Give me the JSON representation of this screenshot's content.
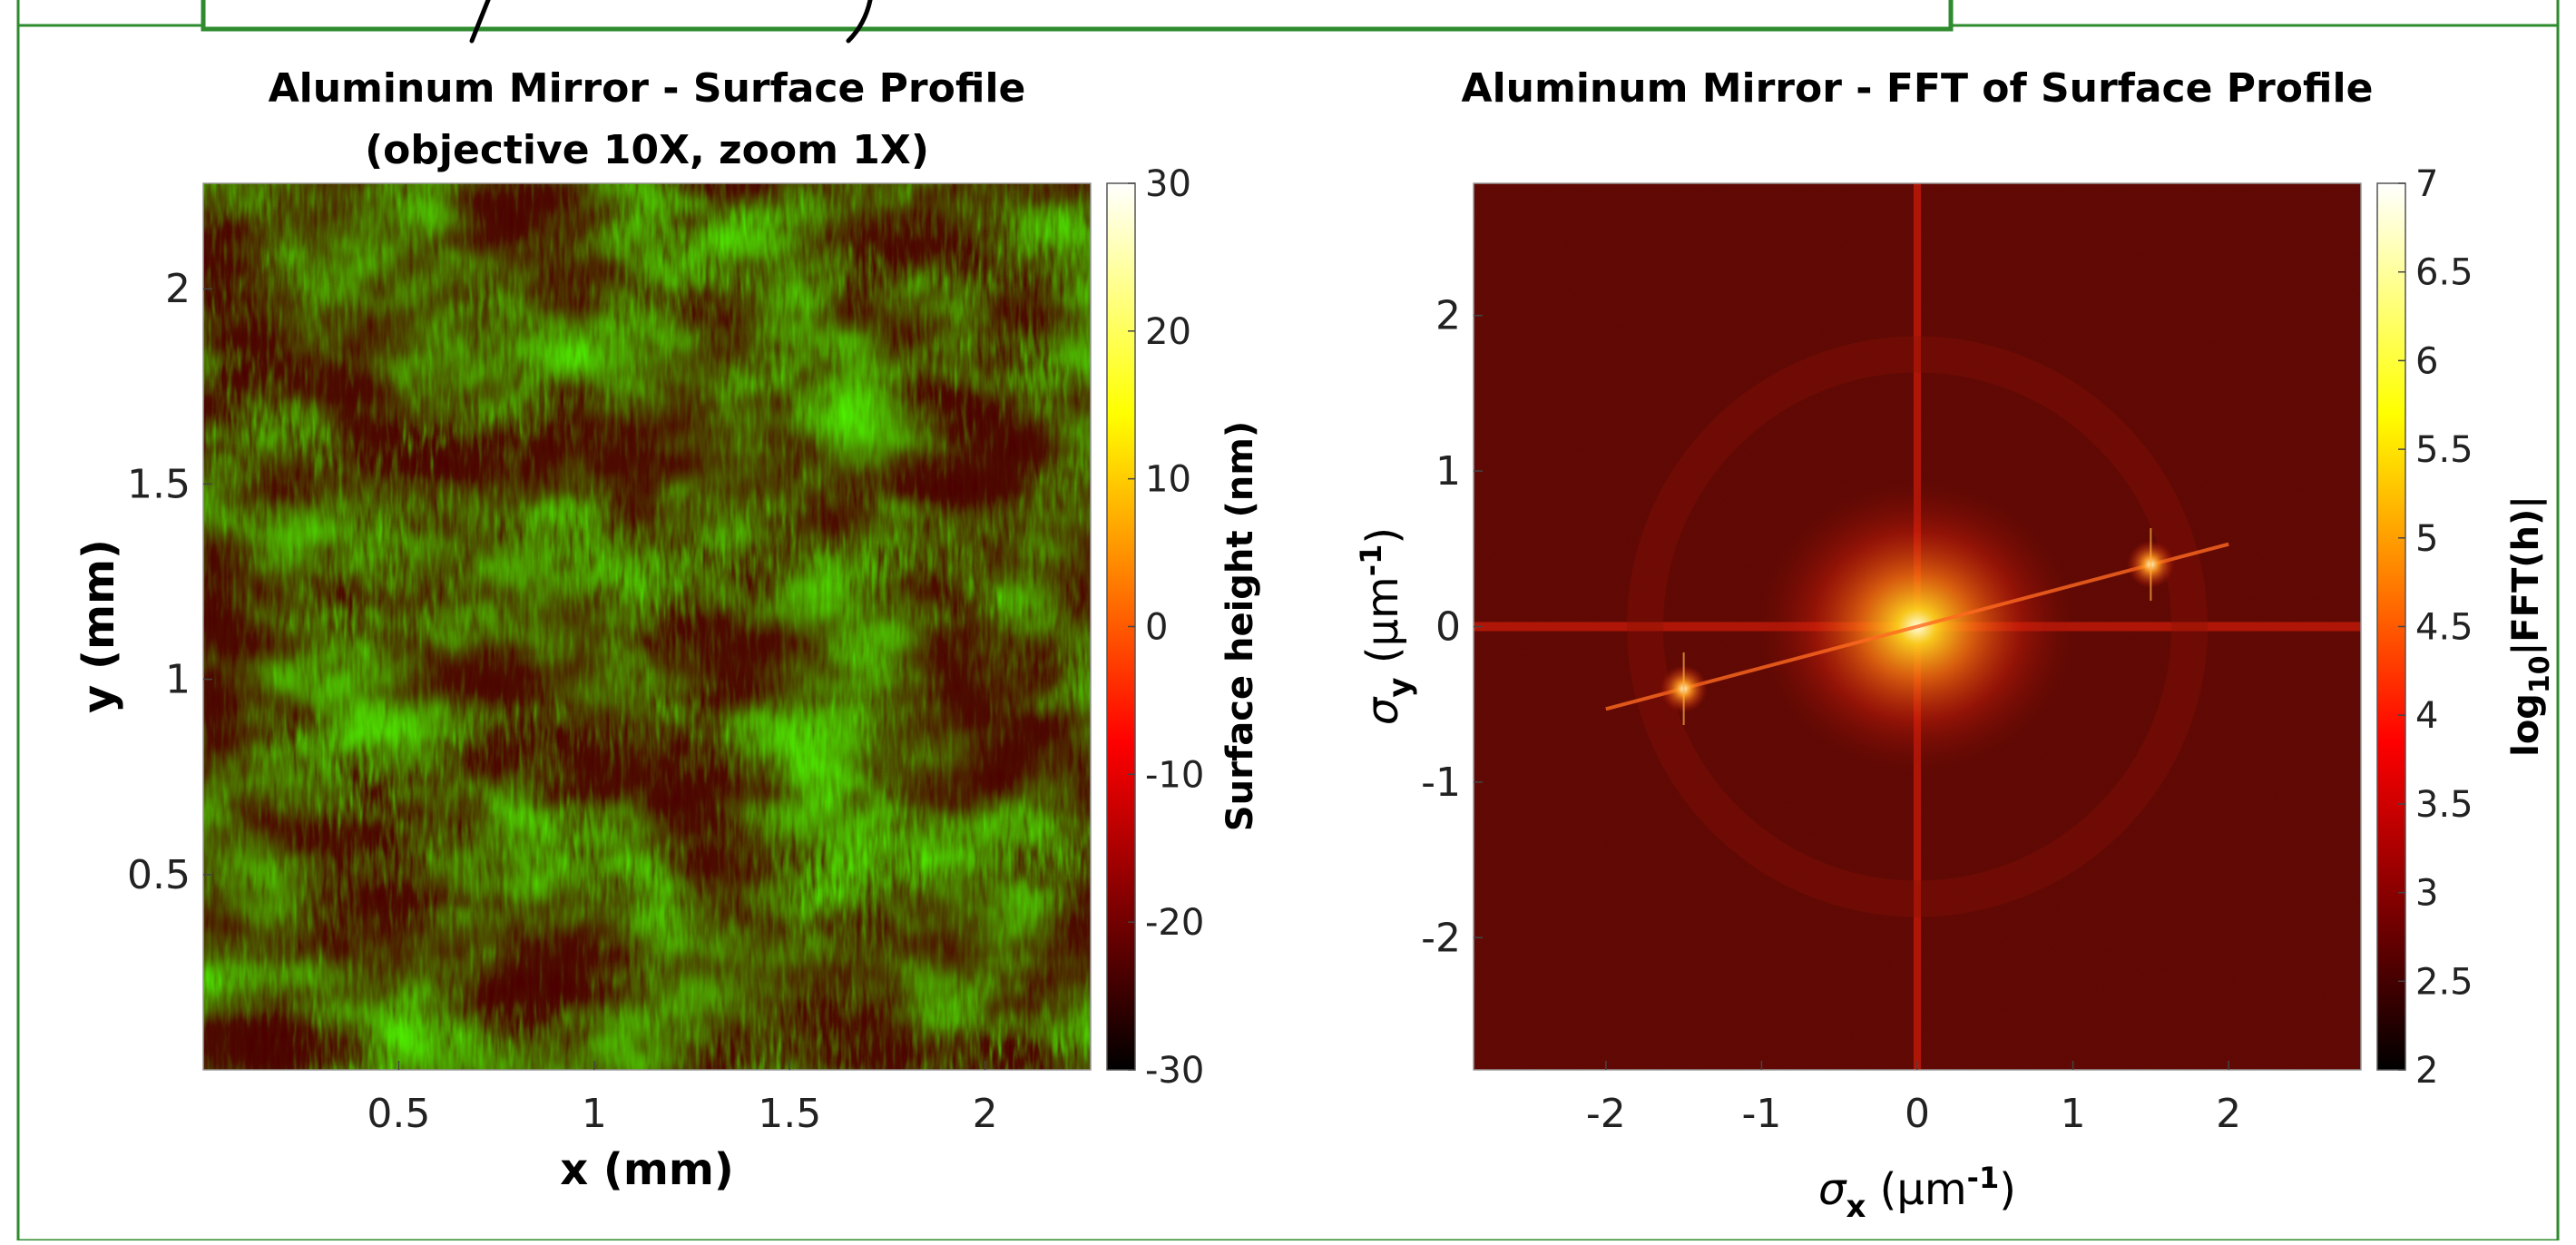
{
  "frame": {
    "border_color": "#2e8b2e"
  },
  "chart_data": [
    {
      "type": "heatmap",
      "title": "Aluminum Mirror - Surface Profile",
      "subtitle": "(objective 10X, zoom 1X)",
      "xlabel": "x (mm)",
      "ylabel": "y (mm)",
      "xlim": [
        0,
        2.27
      ],
      "ylim": [
        0,
        2.27
      ],
      "xticks": [
        0.5,
        1,
        1.5,
        2
      ],
      "xtick_labels": [
        "0.5",
        "1",
        "1.5",
        "2"
      ],
      "yticks": [
        0.5,
        1,
        1.5,
        2
      ],
      "ytick_labels": [
        "0.5",
        "1",
        "1.5",
        "2"
      ],
      "colormap": "hot",
      "colorbar": {
        "label": "Surface height (nm)",
        "range": [
          -30,
          30
        ],
        "ticks": [
          -30,
          -20,
          -10,
          0,
          10,
          20,
          30
        ],
        "tick_labels": [
          "-30",
          "-20",
          "-10",
          "0",
          "10",
          "20",
          "30"
        ]
      },
      "grid": false
    },
    {
      "type": "heatmap",
      "title": "Aluminum Mirror - FFT of Surface Profile",
      "xlabel": {
        "symbol": "σ",
        "sub": "x",
        "unit_prefix": " (μm",
        "sup": "-1",
        "unit_suffix": ")"
      },
      "ylabel": {
        "symbol": "σ",
        "sub": "y",
        "unit_prefix": " (μm",
        "sup": "-1",
        "unit_suffix": ")"
      },
      "xlim": [
        -2.85,
        2.85
      ],
      "ylim": [
        -2.85,
        2.85
      ],
      "xticks": [
        -2,
        -1,
        0,
        1,
        2
      ],
      "xtick_labels": [
        "-2",
        "-1",
        "0",
        "1",
        "2"
      ],
      "yticks": [
        -2,
        -1,
        0,
        1,
        2
      ],
      "ytick_labels": [
        "-2",
        "-1",
        "0",
        "1",
        "2"
      ],
      "colormap": "hot",
      "colorbar": {
        "label": {
          "prefix": "log",
          "sub": "10",
          "suffix": "|FFT(h)|"
        },
        "range": [
          2,
          7
        ],
        "ticks": [
          2,
          2.5,
          3,
          3.5,
          4,
          4.5,
          5,
          5.5,
          6,
          6.5,
          7
        ],
        "tick_labels": [
          "2",
          "2.5",
          "3",
          "3.5",
          "4",
          "4.5",
          "5",
          "5.5",
          "6",
          "6.5",
          "7"
        ]
      },
      "features": {
        "background_log10": 2.9,
        "center_peak": {
          "x": 0,
          "y": 0,
          "value": 6.6
        },
        "side_peaks": [
          {
            "x": 1.5,
            "y": 0.4,
            "value": 5.2
          },
          {
            "x": -1.5,
            "y": -0.4,
            "value": 5.2
          }
        ],
        "axis_streaks": [
          "x = 0",
          "y = 0"
        ]
      },
      "grid": false
    }
  ]
}
